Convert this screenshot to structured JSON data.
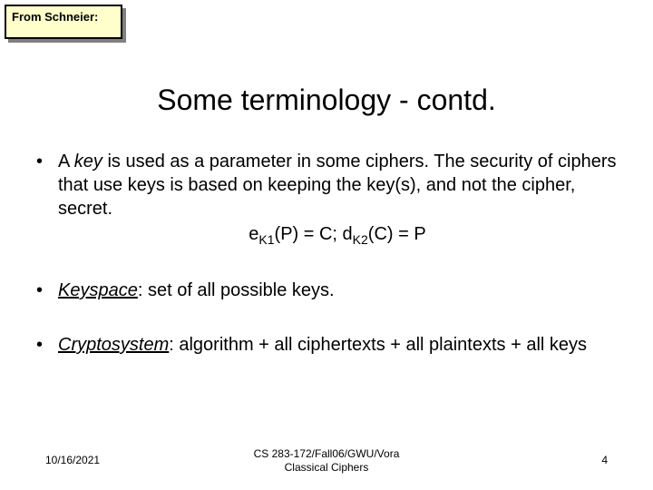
{
  "note": {
    "label": "From Schneier:"
  },
  "title": "Some terminology - contd.",
  "bullets": {
    "b1_pre": "A ",
    "b1_key": "key",
    "b1_post": " is used as a parameter in some ciphers. The security of ciphers that use keys is based on keeping the key(s), and not the cipher, secret.",
    "formula_e": "e",
    "formula_k1": "K1",
    "formula_p": "(P) = C; d",
    "formula_k2": "K2",
    "formula_cp": "(C) = P",
    "b2_term": "Keyspace",
    "b2_rest": ": set of all possible keys.",
    "b3_term": "Cryptosystem",
    "b3_rest": ": algorithm + all ciphertexts + all plaintexts + all keys"
  },
  "footer": {
    "date": "10/16/2021",
    "center1": "CS 283-172/Fall06/GWU/Vora",
    "center2": "Classical Ciphers",
    "page": "4"
  },
  "colors": {
    "note_bg": "#ffffcc",
    "note_border": "#000000",
    "shadow": "#808080",
    "page_bg": "#ffffff",
    "text": "#000000"
  }
}
